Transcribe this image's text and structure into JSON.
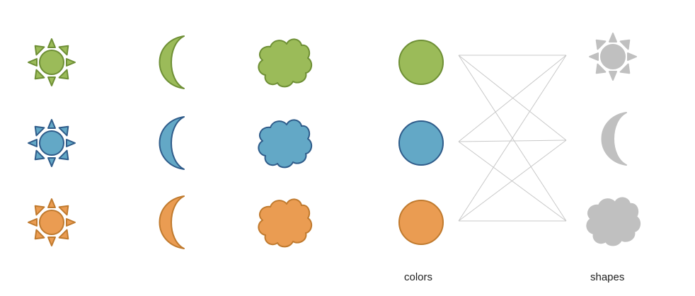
{
  "labels": {
    "colors": "colors",
    "shapes": "shapes"
  },
  "palette": {
    "green": {
      "fill": "#9BBB59",
      "stroke": "#6E8F35"
    },
    "blue": {
      "fill": "#63A8C6",
      "stroke": "#2F5C8A"
    },
    "orange": {
      "fill": "#EA9C52",
      "stroke": "#C07A2E"
    },
    "gray": {
      "fill": "#C0C0C0",
      "stroke": "#C0C0C0"
    },
    "line": "#C8C8C8"
  },
  "grid": {
    "rows": [
      "green",
      "blue",
      "orange"
    ],
    "columns": [
      "sun-icon",
      "moon-icon",
      "cloud-icon"
    ]
  },
  "colors_column": [
    "green",
    "blue",
    "orange"
  ],
  "shapes_column": [
    "sun-icon",
    "moon-icon",
    "cloud-icon"
  ],
  "connections": [
    [
      "green",
      "sun-icon"
    ],
    [
      "green",
      "moon-icon"
    ],
    [
      "green",
      "cloud-icon"
    ],
    [
      "blue",
      "sun-icon"
    ],
    [
      "blue",
      "moon-icon"
    ],
    [
      "blue",
      "cloud-icon"
    ],
    [
      "orange",
      "sun-icon"
    ],
    [
      "orange",
      "moon-icon"
    ],
    [
      "orange",
      "cloud-icon"
    ]
  ]
}
